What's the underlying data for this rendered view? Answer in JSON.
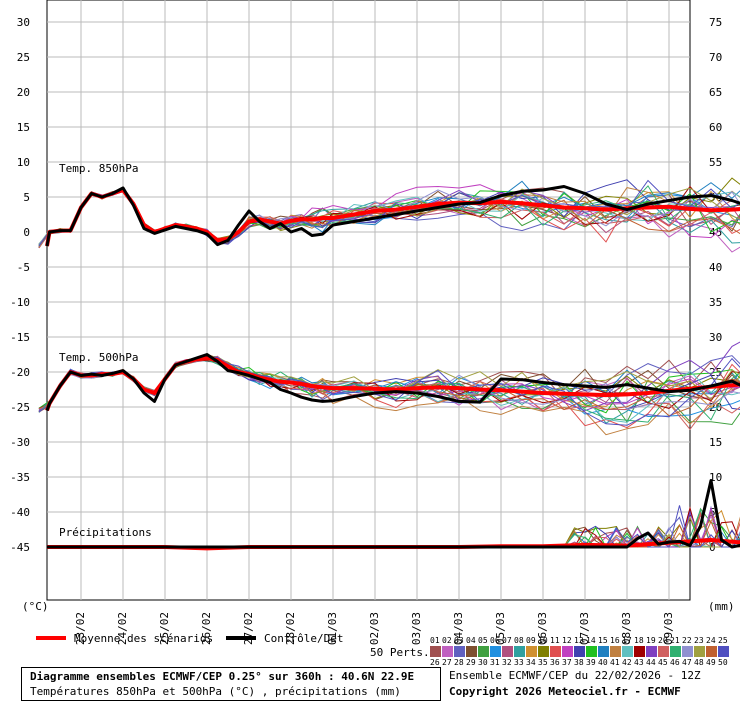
{
  "chart_data": {
    "type": "line",
    "x_dates": [
      "23/02",
      "24/02",
      "25/02",
      "26/02",
      "27/02",
      "28/02",
      "01/03",
      "02/03",
      "03/03",
      "04/03",
      "05/03",
      "06/03",
      "07/03",
      "08/03",
      "09/03"
    ],
    "left_axis": {
      "unit": "(°C)",
      "ticks": [
        30,
        25,
        20,
        15,
        10,
        5,
        0,
        -5,
        -10,
        -15,
        -20,
        -25,
        -30,
        -35,
        -40,
        -45
      ]
    },
    "right_axis": {
      "unit": "(mm)",
      "ticks": [
        75,
        70,
        65,
        60,
        55,
        50,
        45,
        40,
        35,
        30,
        25,
        20,
        15,
        10,
        5,
        0
      ]
    },
    "panel_labels": {
      "t850": "Temp. 850hPa",
      "t500": "Temp. 500hPa",
      "precip": "Précipitations"
    },
    "series": [
      {
        "name": "Moyenne des scénarios",
        "color": "#ff0000",
        "group": "t850",
        "x": [
          22.0,
          22.25,
          22.5,
          22.75,
          23.0,
          23.25,
          23.5,
          23.75,
          24.0,
          24.25,
          24.5,
          24.75,
          25.0,
          25.25,
          25.5,
          25.75,
          26.0,
          26.25,
          26.5,
          26.75,
          27.0,
          27.25,
          27.5,
          27.75,
          28.0,
          28.25,
          28.5,
          28.75,
          29.0,
          29.5,
          30.0,
          30.5,
          31.0,
          31.5,
          32.0,
          32.5,
          33.0,
          33.5,
          34.0,
          34.5,
          35.0,
          35.5,
          36.0,
          36.5,
          37.0,
          37.5,
          38.0,
          38.5,
          39.0,
          39.5,
          40.0
        ],
        "values": [
          -2,
          0,
          0.2,
          0.2,
          3.5,
          5.5,
          5,
          5.5,
          6,
          4,
          1,
          0,
          0.5,
          1,
          0.8,
          0.5,
          0,
          -1.2,
          -1,
          0,
          1.5,
          1.8,
          1.5,
          1.2,
          1.6,
          1.8,
          1.8,
          2,
          2,
          2.5,
          3,
          3.2,
          3.6,
          4,
          4.2,
          4.1,
          4.3,
          4.1,
          3.8,
          3.5,
          3.4,
          3.2,
          3.4,
          3.5,
          3.6,
          3.3,
          3.1,
          3.2,
          3.4,
          3.2,
          3.3
        ]
      },
      {
        "name": "Contrôle/Det",
        "color": "#000000",
        "group": "t850",
        "x": [
          22.0,
          22.25,
          22.5,
          22.75,
          23.0,
          23.25,
          23.5,
          23.75,
          24.0,
          24.25,
          24.5,
          24.75,
          25.0,
          25.25,
          25.5,
          25.75,
          26.0,
          26.25,
          26.5,
          26.75,
          27.0,
          27.25,
          27.5,
          27.75,
          28.0,
          28.25,
          28.5,
          28.75,
          29.0,
          29.5,
          30.0,
          30.5,
          31.0,
          31.5,
          32.0,
          32.5,
          33.0,
          33.5,
          34.0,
          34.5,
          35.0,
          35.5,
          36.0,
          36.5,
          37.0,
          37.5,
          38.0,
          38.5,
          39.0,
          39.5,
          40.0
        ],
        "values": [
          -2,
          0,
          0.2,
          0.2,
          3.5,
          5.5,
          5,
          5.5,
          6.3,
          3.8,
          0.5,
          -0.2,
          0.3,
          0.8,
          0.5,
          0.2,
          -0.3,
          -1.8,
          -1.2,
          1,
          3,
          1.5,
          0.5,
          1.2,
          0,
          0.5,
          -0.5,
          -0.3,
          1,
          1.5,
          2,
          2.5,
          3,
          3.5,
          4,
          4.2,
          5.2,
          5.8,
          6,
          6.5,
          5.5,
          4,
          3.2,
          4,
          4.5,
          5,
          5.2,
          4.5,
          3.5,
          3,
          3.2
        ]
      },
      {
        "name": "Moyenne des scénarios",
        "color": "#ff0000",
        "group": "t500",
        "x": [
          22.0,
          22.25,
          22.5,
          22.75,
          23.0,
          23.25,
          23.5,
          23.75,
          24.0,
          24.25,
          24.5,
          24.75,
          25.0,
          25.25,
          25.5,
          25.75,
          26.0,
          26.25,
          26.5,
          26.75,
          27.0,
          27.25,
          27.5,
          27.75,
          28.0,
          28.25,
          28.5,
          28.75,
          29.0,
          29.5,
          30.0,
          30.5,
          31.0,
          31.5,
          32.0,
          32.5,
          33.0,
          33.5,
          34.0,
          34.5,
          35.0,
          35.5,
          36.0,
          36.5,
          37.0,
          37.5,
          38.0,
          38.5,
          39.0,
          39.5,
          40.0
        ],
        "values": [
          -25.5,
          -24.5,
          -22,
          -20,
          -20.5,
          -20.5,
          -20.3,
          -20.3,
          -20,
          -21,
          -22.5,
          -23,
          -21,
          -19,
          -18.5,
          -18.2,
          -18,
          -18.3,
          -19.2,
          -20,
          -20.3,
          -20.8,
          -21.1,
          -21.4,
          -21.5,
          -21.7,
          -22,
          -22.2,
          -22.3,
          -22.3,
          -22.4,
          -22.5,
          -22.3,
          -22.2,
          -22.3,
          -22.5,
          -22.6,
          -22.8,
          -23,
          -23.1,
          -23.2,
          -23.3,
          -23.2,
          -23,
          -22.7,
          -22.4,
          -22.1,
          -21.9,
          -21.6,
          -21.5,
          -21.4
        ]
      },
      {
        "name": "Contrôle/Det",
        "color": "#000000",
        "group": "t500",
        "x": [
          22.0,
          22.25,
          22.5,
          22.75,
          23.0,
          23.25,
          23.5,
          23.75,
          24.0,
          24.25,
          24.5,
          24.75,
          25.0,
          25.25,
          25.5,
          25.75,
          26.0,
          26.25,
          26.5,
          26.75,
          27.0,
          27.25,
          27.5,
          27.75,
          28.0,
          28.25,
          28.5,
          28.75,
          29.0,
          29.5,
          30.0,
          30.5,
          31.0,
          31.5,
          32.0,
          32.5,
          33.0,
          33.5,
          34.0,
          34.5,
          35.0,
          35.5,
          36.0,
          36.5,
          37.0,
          37.5,
          38.0,
          38.5,
          39.0,
          39.5,
          40.0
        ],
        "values": [
          -25.5,
          -24.5,
          -22,
          -20,
          -20.5,
          -20.3,
          -20.5,
          -20.2,
          -19.8,
          -21,
          -23,
          -24.2,
          -21,
          -19,
          -18.5,
          -18,
          -17.5,
          -18.5,
          -19.8,
          -20.1,
          -20.5,
          -21,
          -21.5,
          -22.5,
          -23,
          -23.6,
          -24,
          -24.2,
          -24.1,
          -23.5,
          -23,
          -22.8,
          -23,
          -23.5,
          -24.2,
          -24.3,
          -21,
          -21.1,
          -21.5,
          -21.8,
          -22,
          -22.2,
          -21.8,
          -22.3,
          -22.8,
          -22.6,
          -22,
          -21.3,
          -22.8,
          -23,
          -22
        ]
      },
      {
        "name": "Moyenne des scénarios",
        "color": "#ff0000",
        "group": "precip",
        "x": [
          22.0,
          23.0,
          24.0,
          25.0,
          26.0,
          27.0,
          28.0,
          29.0,
          30.0,
          31.0,
          32.0,
          33.0,
          34.0,
          35.0,
          36.0,
          37.0,
          38.0,
          39.0,
          40.0
        ],
        "values": [
          0,
          0,
          0,
          0,
          -0.2,
          0,
          0,
          0,
          0,
          0,
          0,
          0.1,
          0.1,
          0.3,
          0.2,
          0.6,
          1,
          0.5,
          0.2
        ]
      },
      {
        "name": "Contrôle/Det",
        "color": "#000000",
        "group": "precip",
        "x": [
          22.0,
          30.0,
          34.0,
          35.0,
          36.0,
          36.25,
          36.5,
          36.75,
          37.0,
          37.25,
          37.5,
          37.75,
          38.0,
          38.25,
          38.5,
          38.75,
          39.0,
          40.0
        ],
        "values": [
          0,
          0,
          0,
          0,
          0,
          1.2,
          2,
          0.4,
          0.7,
          0.8,
          0.2,
          3,
          9.5,
          1,
          0,
          0.3,
          0,
          0
        ]
      }
    ],
    "legend": {
      "mean": "Moyenne des scénarios",
      "control": "Contrôle/Det",
      "perts_label": "50 Perts."
    },
    "perts_codes_top": [
      "01",
      "02",
      "03",
      "04",
      "05",
      "06",
      "07",
      "08",
      "09",
      "10",
      "11",
      "12",
      "13",
      "14",
      "15",
      "16",
      "17",
      "18",
      "19",
      "20",
      "21",
      "22",
      "23",
      "24",
      "25"
    ],
    "perts_codes_bottom": [
      "26",
      "27",
      "28",
      "29",
      "30",
      "31",
      "32",
      "33",
      "34",
      "35",
      "36",
      "37",
      "38",
      "39",
      "40",
      "41",
      "42",
      "43",
      "44",
      "45",
      "46",
      "47",
      "48",
      "49",
      "50"
    ],
    "perts_colors": [
      "#a05050",
      "#c060c0",
      "#6060c0",
      "#7e4f2f",
      "#40a040",
      "#2090e0",
      "#b05080",
      "#30a0a0",
      "#d09030",
      "#808000",
      "#e05050",
      "#c040c0",
      "#4040b0",
      "#20c020",
      "#2080c0",
      "#c08040",
      "#60c0c0",
      "#a00000",
      "#8040c0",
      "#d06060",
      "#30b070",
      "#9090d0",
      "#a0a040",
      "#c06030",
      "#5050c0"
    ],
    "grid": true
  },
  "footer": {
    "title_bold": "Diagramme ensembles ECMWF/CEP 0.25° sur 360h : 40.6N 22.9E",
    "subtitle": "Températures 850hPa et 500hPa (°C) , précipitations (mm)",
    "run_info": "Ensemble ECMWF/CEP du 22/02/2026 - 12Z",
    "copyright": "Copyright 2026 Meteociel.fr - ECMWF"
  }
}
